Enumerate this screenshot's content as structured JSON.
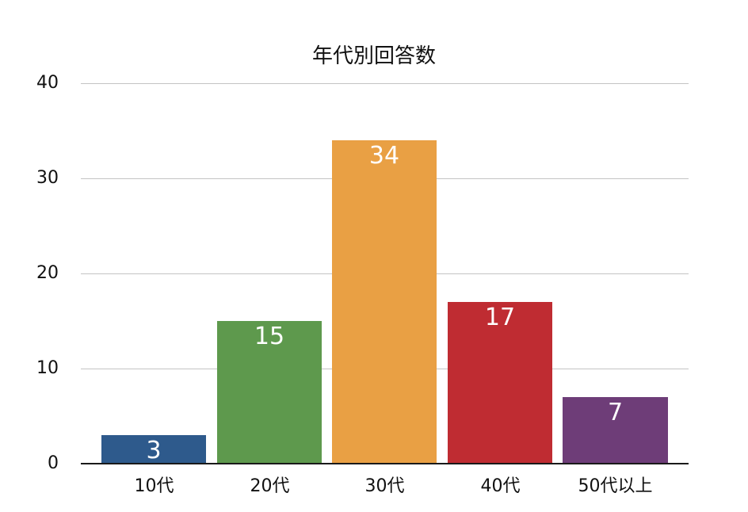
{
  "chart_data": {
    "type": "bar",
    "title": "年代別回答数",
    "xlabel": "",
    "ylabel": "",
    "categories": [
      "10代",
      "20代",
      "30代",
      "40代",
      "50代以上"
    ],
    "values": [
      3,
      15,
      34,
      17,
      7
    ],
    "colors": [
      "#2e5a8c",
      "#5e994d",
      "#e9a044",
      "#bf2c32",
      "#6e3d78"
    ],
    "ylim": [
      0,
      40
    ],
    "yticks": [
      "0",
      "10",
      "20",
      "30",
      "40"
    ],
    "grid": true,
    "legend": null,
    "data_labels": [
      "3",
      "15",
      "34",
      "17",
      "7"
    ]
  }
}
